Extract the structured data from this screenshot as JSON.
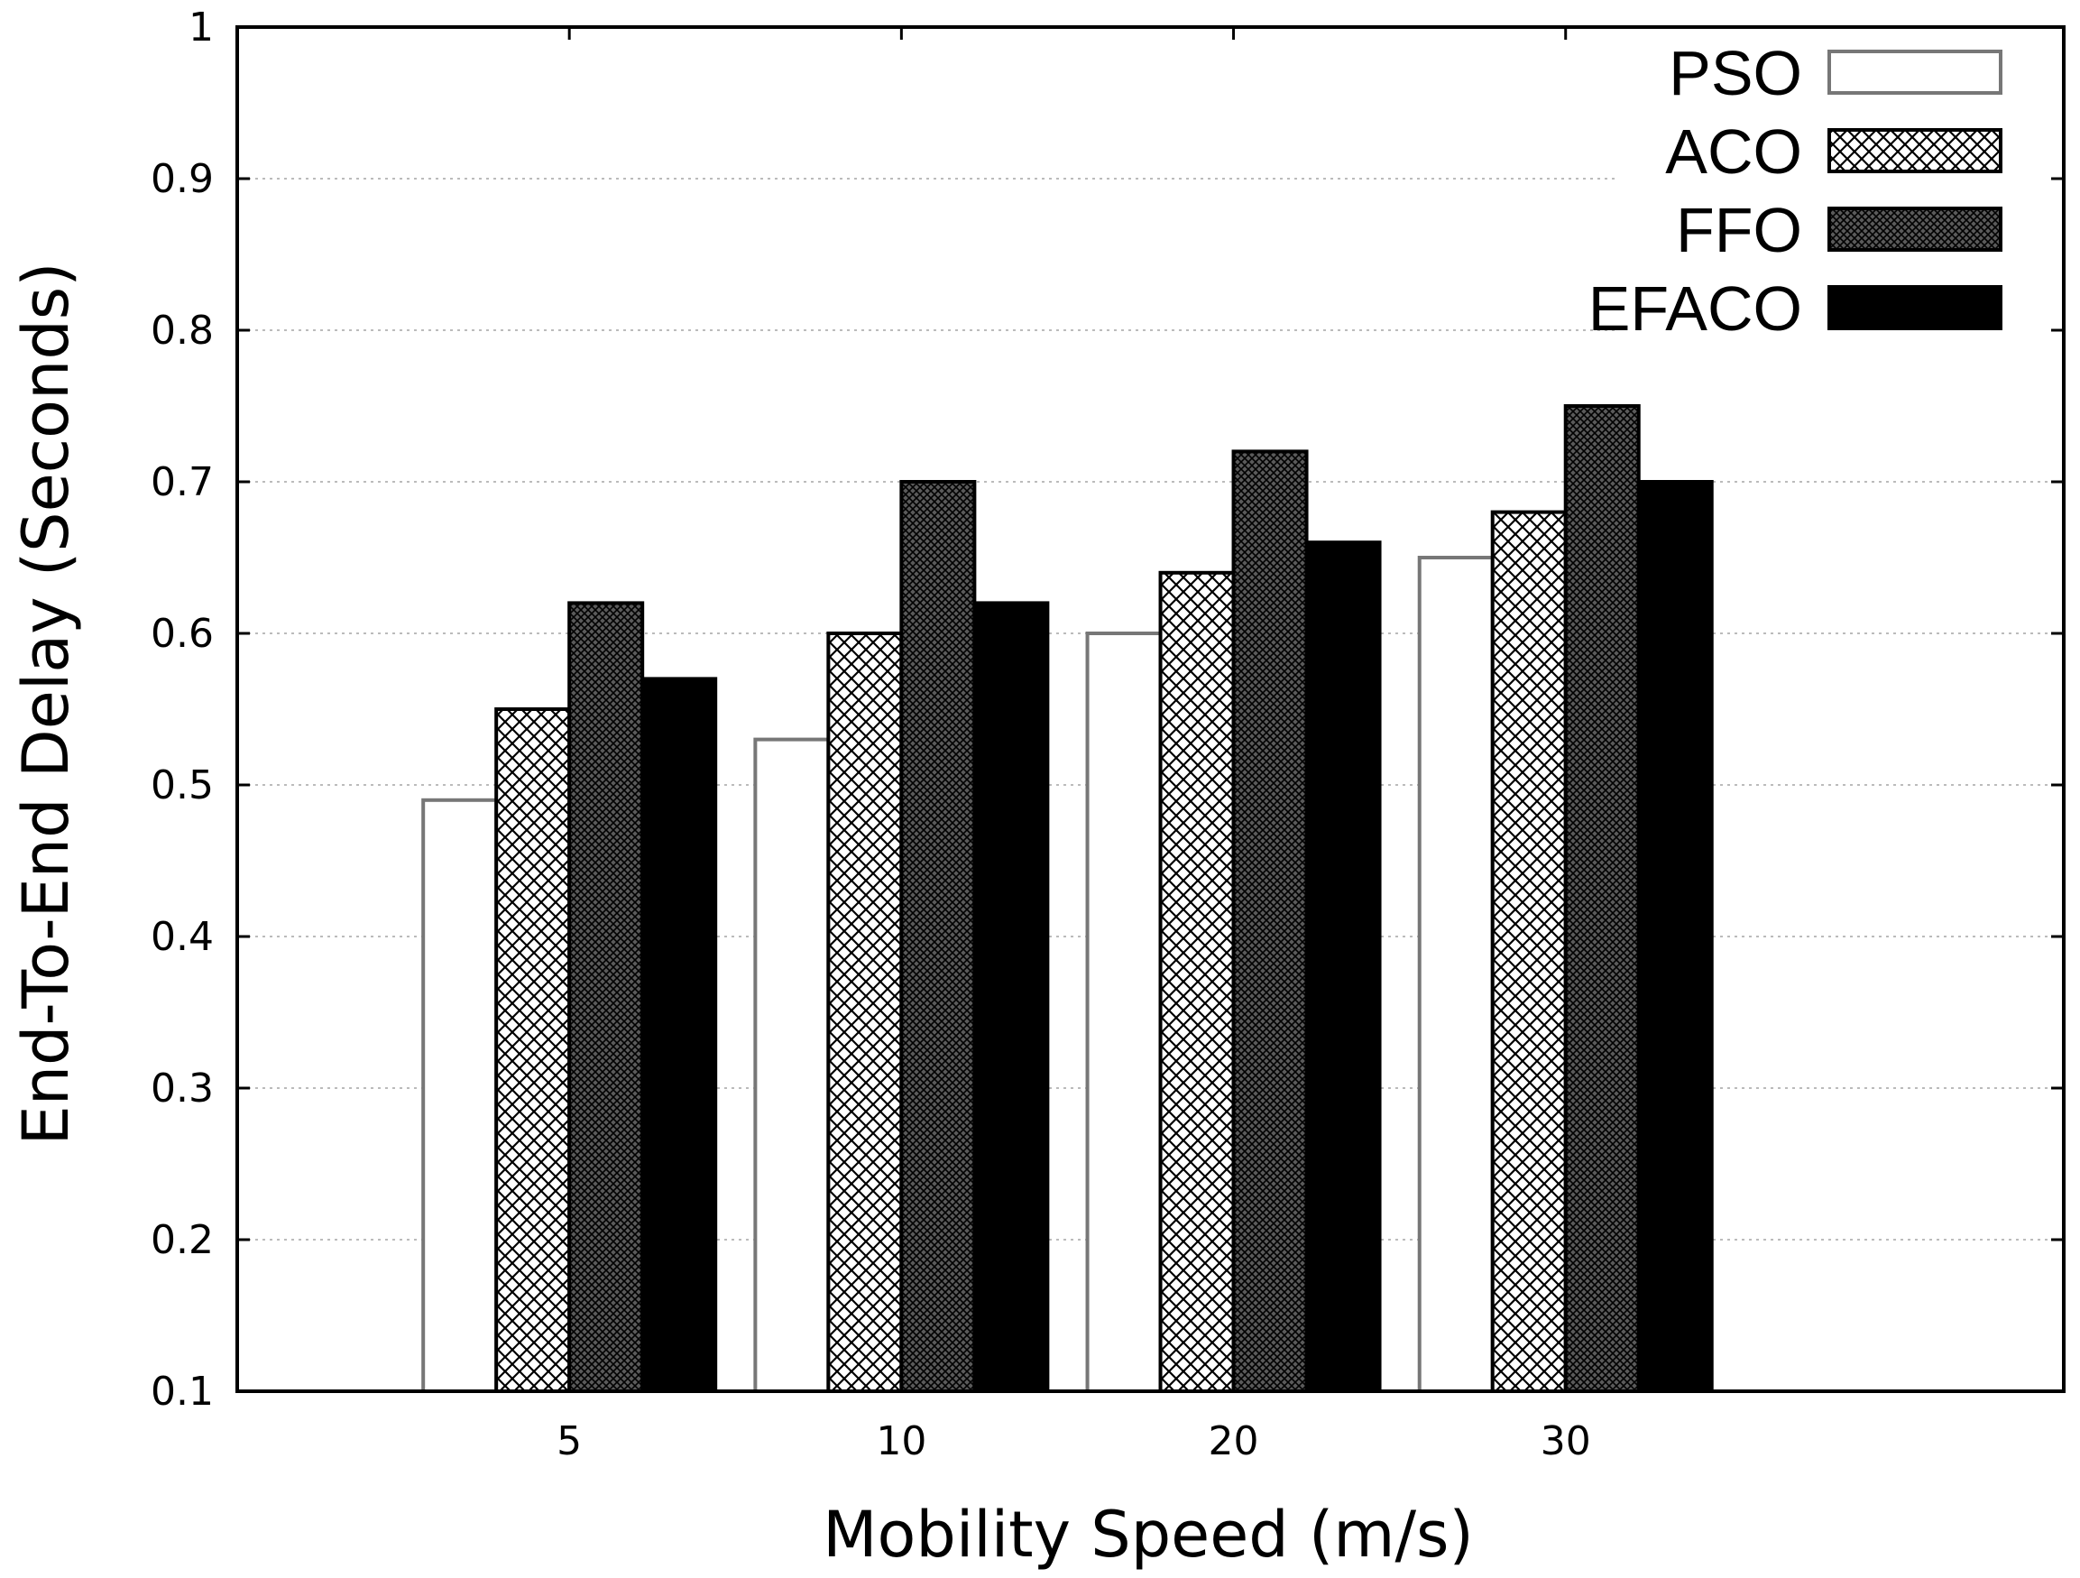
{
  "chart_data": {
    "type": "bar",
    "title": "",
    "xlabel": "Mobility Speed (m/s)",
    "ylabel": "End-To-End Delay (Seconds)",
    "categories": [
      "5",
      "10",
      "20",
      "30"
    ],
    "ylim": [
      0.1,
      1
    ],
    "yticks": [
      "0.1",
      "0.2",
      "0.3",
      "0.4",
      "0.5",
      "0.6",
      "0.7",
      "0.8",
      "0.9",
      "1"
    ],
    "grid": true,
    "legend_position": "top-right",
    "series": [
      {
        "name": "PSO",
        "values": [
          0.49,
          0.53,
          0.6,
          0.65
        ],
        "fill": "white"
      },
      {
        "name": "ACO",
        "values": [
          0.55,
          0.6,
          0.64,
          0.68
        ],
        "fill": "crosshatch"
      },
      {
        "name": "FFO",
        "values": [
          0.62,
          0.7,
          0.72,
          0.75
        ],
        "fill": "dense-crosshatch"
      },
      {
        "name": "EFACO",
        "values": [
          0.57,
          0.62,
          0.66,
          0.7
        ],
        "fill": "black"
      }
    ],
    "colors": {
      "bar_outline": "#000000",
      "pso_outline": "#777777",
      "grid": "#bbbbbb"
    }
  }
}
